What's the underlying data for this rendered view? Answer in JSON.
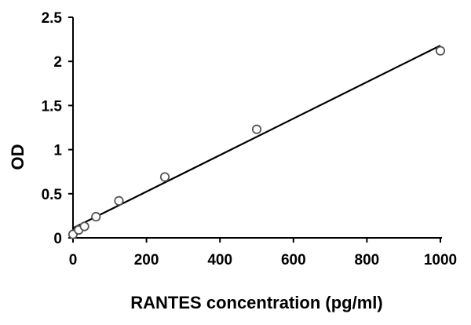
{
  "chart_data": {
    "type": "scatter",
    "title": "",
    "xlabel": "RANTES concentration (pg/ml)",
    "ylabel": "OD",
    "xlim": [
      0,
      1000
    ],
    "ylim": [
      0,
      2.5
    ],
    "xticks": [
      0,
      200,
      400,
      600,
      800,
      1000
    ],
    "yticks": [
      0,
      0.5,
      1,
      1.5,
      2,
      2.5
    ],
    "xtick_labels": [
      "0",
      "200",
      "400",
      "600",
      "800",
      "1000"
    ],
    "ytick_labels": [
      "0",
      "0.5",
      "1",
      "1.5",
      "2",
      "2.5"
    ],
    "grid": false,
    "points": [
      {
        "x": 0,
        "y": 0.04
      },
      {
        "x": 15.6,
        "y": 0.09
      },
      {
        "x": 31.25,
        "y": 0.13
      },
      {
        "x": 62.5,
        "y": 0.24
      },
      {
        "x": 125,
        "y": 0.42
      },
      {
        "x": 250,
        "y": 0.69
      },
      {
        "x": 500,
        "y": 1.23
      },
      {
        "x": 1000,
        "y": 2.12
      }
    ],
    "trendline": {
      "type": "linear",
      "x": [
        0,
        1000
      ],
      "y": [
        0.11,
        2.18
      ]
    },
    "colors": {
      "marker_edge": "#555555",
      "marker_fill": "#ffffff",
      "line": "#000000"
    }
  }
}
